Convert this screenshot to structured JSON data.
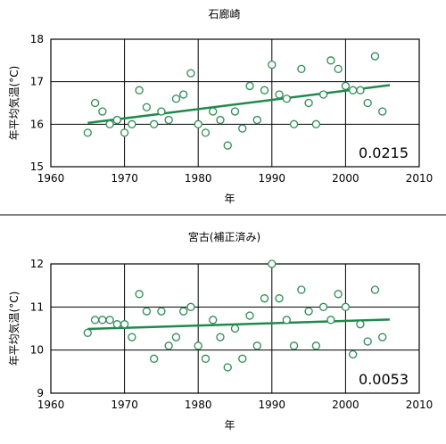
{
  "chart_data": [
    {
      "type": "scatter",
      "title": "石廊崎",
      "xlabel": "年",
      "ylabel": "年平均気温(°C)",
      "xlim": [
        1960,
        2010
      ],
      "ylim": [
        15,
        18
      ],
      "x_ticks": [
        "1960",
        "1970",
        "1980",
        "1990",
        "2000",
        "2010"
      ],
      "y_ticks": [
        "15",
        "16",
        "17",
        "18"
      ],
      "grid": true,
      "marker_color": "#2e8b57",
      "trend_color": "#1f8a4c",
      "points": {
        "x": [
          1965,
          1966,
          1967,
          1968,
          1969,
          1970,
          1971,
          1972,
          1973,
          1974,
          1975,
          1976,
          1977,
          1978,
          1979,
          1980,
          1981,
          1982,
          1983,
          1984,
          1985,
          1986,
          1987,
          1988,
          1989,
          1990,
          1991,
          1992,
          1993,
          1994,
          1995,
          1996,
          1997,
          1998,
          1999,
          2000,
          2001,
          2002,
          2003,
          2004,
          2005
        ],
        "y": [
          15.8,
          16.5,
          16.3,
          16.0,
          16.1,
          15.8,
          16.0,
          16.8,
          16.4,
          16.0,
          16.3,
          16.1,
          16.6,
          16.7,
          17.2,
          16.0,
          15.8,
          16.3,
          16.1,
          15.5,
          16.3,
          15.9,
          16.9,
          16.1,
          16.8,
          17.4,
          16.7,
          16.6,
          16.0,
          17.3,
          16.5,
          16.0,
          16.7,
          17.5,
          17.3,
          16.9,
          16.8,
          16.8,
          16.5,
          17.6,
          16.3
        ]
      },
      "trend": {
        "x": [
          1965,
          2006
        ],
        "y": [
          16.03,
          16.92
        ]
      },
      "slope_label": "0.0215"
    },
    {
      "type": "scatter",
      "title": "宮古(補正済み)",
      "xlabel": "年",
      "ylabel": "年平均気温(°C)",
      "xlim": [
        1960,
        2010
      ],
      "ylim": [
        9,
        12
      ],
      "x_ticks": [
        "1960",
        "1970",
        "1980",
        "1990",
        "2000",
        "2010"
      ],
      "y_ticks": [
        "9",
        "10",
        "11",
        "12"
      ],
      "grid": true,
      "marker_color": "#2e8b57",
      "trend_color": "#1f8a4c",
      "points": {
        "x": [
          1965,
          1966,
          1967,
          1968,
          1969,
          1970,
          1971,
          1972,
          1973,
          1974,
          1975,
          1976,
          1977,
          1978,
          1979,
          1980,
          1981,
          1982,
          1983,
          1984,
          1985,
          1986,
          1987,
          1988,
          1989,
          1990,
          1991,
          1992,
          1993,
          1994,
          1995,
          1996,
          1997,
          1998,
          1999,
          2000,
          2001,
          2002,
          2003,
          2004,
          2005
        ],
        "y": [
          10.4,
          10.7,
          10.7,
          10.7,
          10.6,
          10.6,
          10.3,
          11.3,
          10.9,
          9.8,
          10.9,
          10.1,
          10.3,
          10.9,
          11.0,
          10.1,
          9.8,
          10.7,
          10.3,
          9.6,
          10.5,
          9.8,
          10.8,
          10.1,
          11.2,
          12.0,
          11.2,
          10.7,
          10.1,
          11.4,
          10.9,
          10.1,
          11.0,
          10.7,
          11.3,
          11.0,
          9.9,
          10.6,
          10.2,
          11.4,
          10.3
        ]
      },
      "trend": {
        "x": [
          1965,
          2006
        ],
        "y": [
          10.49,
          10.71
        ]
      },
      "slope_label": "0.0053"
    }
  ]
}
